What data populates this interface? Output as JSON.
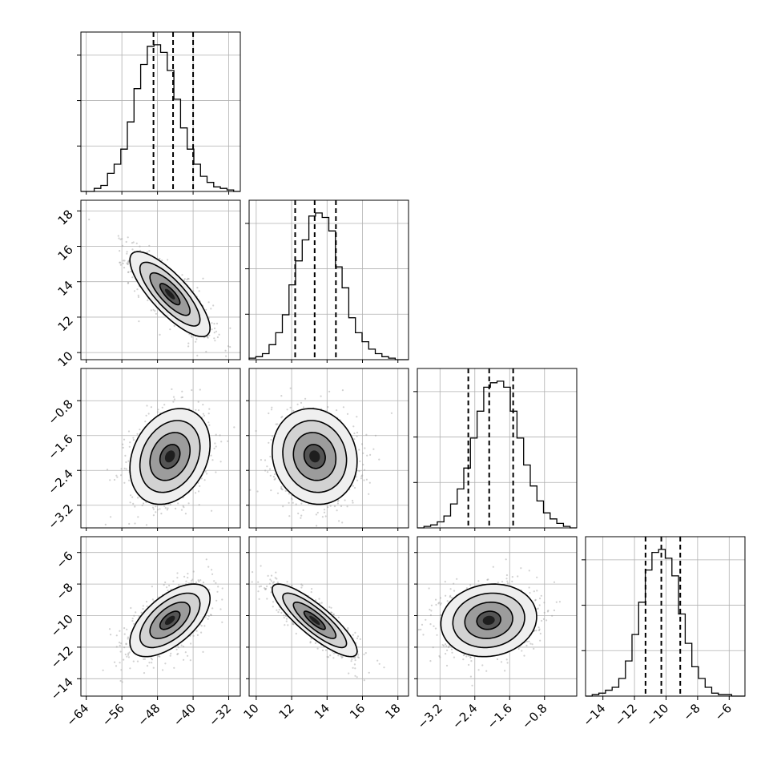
{
  "chart_data": {
    "type": "corner",
    "title": "",
    "grid": true,
    "params": [
      {
        "ticks": [
          -64,
          -56,
          -48,
          -40,
          -32
        ],
        "tick_labels": [
          "−64",
          "−56",
          "−48",
          "−40",
          "−32"
        ],
        "range": [
          -65.2,
          -29.4
        ],
        "quantiles": [
          -48.9,
          -44.5,
          -40.0
        ]
      },
      {
        "ticks": [
          10,
          12,
          14,
          16,
          18
        ],
        "tick_labels": [
          "10",
          "12",
          "14",
          "16",
          "18"
        ],
        "range": [
          9.6,
          18.6
        ],
        "quantiles": [
          12.2,
          13.3,
          14.5
        ]
      },
      {
        "ticks": [
          -3.2,
          -2.4,
          -1.6,
          -0.8
        ],
        "tick_labels": [
          "−3.2",
          "−2.4",
          "−1.6",
          "−0.8"
        ],
        "range": [
          -3.72,
          -0.06
        ],
        "quantiles": [
          -2.55,
          -2.07,
          -1.52
        ]
      },
      {
        "ticks": [
          -14,
          -12,
          -10,
          -8,
          -6
        ],
        "tick_labels": [
          "−14",
          "−12",
          "−10",
          "−8",
          "−6"
        ],
        "range": [
          -15.1,
          -5.0
        ],
        "quantiles": [
          -11.3,
          -10.3,
          -9.1
        ]
      }
    ],
    "hist_1d": [
      {
        "counts": [
          0,
          0,
          2,
          4,
          12,
          18,
          28,
          46,
          68,
          84,
          96,
          97,
          92,
          80,
          61,
          42,
          28,
          18,
          10,
          6,
          3,
          2,
          1,
          0
        ]
      },
      {
        "counts": [
          1,
          2,
          4,
          10,
          18,
          30,
          50,
          66,
          80,
          96,
          98,
          95,
          86,
          62,
          48,
          28,
          18,
          12,
          7,
          4,
          2,
          1,
          0,
          0
        ]
      },
      {
        "counts": [
          0,
          1,
          2,
          4,
          8,
          16,
          26,
          40,
          60,
          78,
          94,
          97,
          98,
          94,
          78,
          60,
          42,
          28,
          18,
          10,
          6,
          3,
          1,
          0
        ]
      },
      {
        "counts": [
          0,
          1,
          2,
          4,
          6,
          12,
          24,
          42,
          64,
          86,
          98,
          100,
          94,
          82,
          56,
          36,
          20,
          12,
          6,
          2,
          1,
          1,
          0,
          0
        ]
      }
    ],
    "posterior_2d": {
      "mean": [
        -45.2,
        13.3,
        -2.08,
        -10.3
      ],
      "sd": [
        4.5,
        1.2,
        0.55,
        1.15
      ],
      "correlation": [
        [
          1.0,
          -0.8,
          0.25,
          0.6
        ],
        [
          -0.8,
          1.0,
          -0.1,
          -0.85
        ],
        [
          0.25,
          -0.1,
          1.0,
          0.1
        ],
        [
          0.6,
          -0.85,
          0.1,
          1.0
        ]
      ]
    },
    "contour_levels_sigma": [
      0.5,
      1.0,
      1.5,
      2.0
    ],
    "colors": {
      "contour": "#000000",
      "scatter": "#9a9a9a",
      "grid": "#b0b0b0",
      "quantile_line": "#000000"
    }
  }
}
